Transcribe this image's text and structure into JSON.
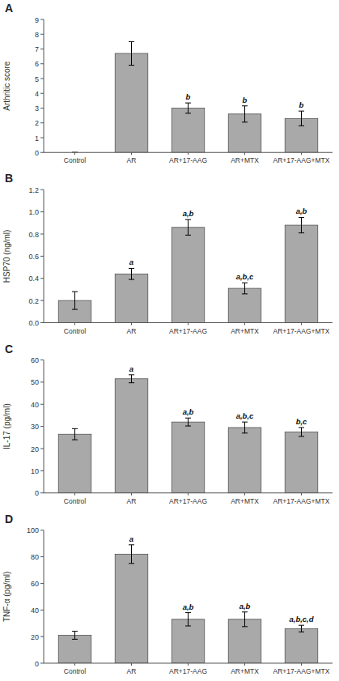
{
  "chart_data": [
    {
      "type": "bar",
      "title": "A",
      "ylabel": "Arthritic score",
      "categories": [
        "Control",
        "AR",
        "AR+17-AAG",
        "AR+MTX",
        "AR+17-AAG+MTX"
      ],
      "values": [
        0.0,
        6.7,
        3.0,
        2.6,
        2.3
      ],
      "errors": [
        0.0,
        0.8,
        0.35,
        0.55,
        0.5
      ],
      "annotations": [
        null,
        null,
        "b",
        "b",
        "b"
      ],
      "color": "#a9a9a9",
      "grid": false,
      "ylim": [
        0,
        9
      ],
      "yticks": [
        0,
        1,
        2,
        3,
        4,
        5,
        6,
        7,
        8,
        9
      ]
    },
    {
      "type": "bar",
      "title": "B",
      "ylabel": "HSP70 (ng/ml)",
      "categories": [
        "Control",
        "AR",
        "AR+17-AAG",
        "AR+MTX",
        "AR+17-AAG+MTX"
      ],
      "values": [
        0.2,
        0.44,
        0.86,
        0.31,
        0.88
      ],
      "errors": [
        0.08,
        0.05,
        0.07,
        0.05,
        0.07
      ],
      "annotations": [
        null,
        "a",
        "a,b",
        "a,b,c",
        "a,b"
      ],
      "color": "#a9a9a9",
      "grid": false,
      "ylim": [
        0,
        1.2
      ],
      "yticks": [
        {
          "value": 0,
          "label": "0.0"
        },
        0.2,
        0.4,
        0.6,
        0.8,
        {
          "value": 1.0,
          "label": "1.0"
        },
        1.2
      ]
    },
    {
      "type": "bar",
      "title": "C",
      "ylabel": "IL-17 (pg/ml)",
      "categories": [
        "Control",
        "AR",
        "AR+17-AAG",
        "AR+MTX",
        "AR+17-AAG+MTX"
      ],
      "values": [
        26.5,
        51.5,
        32.0,
        29.5,
        27.5
      ],
      "errors": [
        2.5,
        1.8,
        1.8,
        2.5,
        2.0
      ],
      "annotations": [
        null,
        "a",
        "a,b",
        "a,b,c",
        "b,c"
      ],
      "color": "#a9a9a9",
      "grid": false,
      "ylim": [
        0,
        60
      ],
      "yticks": [
        0,
        10,
        20,
        30,
        40,
        50,
        60
      ]
    },
    {
      "type": "bar",
      "title": "D",
      "ylabel": "TNF-α (pg/ml)",
      "categories": [
        "Control",
        "AR",
        "AR+17-AAG",
        "AR+MTX",
        "AR+17-AAG+MTX"
      ],
      "values": [
        21.0,
        82.0,
        33.0,
        33.0,
        26.0
      ],
      "errors": [
        3.0,
        7.0,
        5.0,
        5.5,
        2.5
      ],
      "annotations": [
        null,
        "a",
        "a,b",
        "a,b",
        "a,b,c,d"
      ],
      "color": "#a9a9a9",
      "grid": false,
      "ylim": [
        0,
        100
      ],
      "yticks": [
        0,
        20,
        40,
        60,
        80,
        100
      ]
    }
  ]
}
